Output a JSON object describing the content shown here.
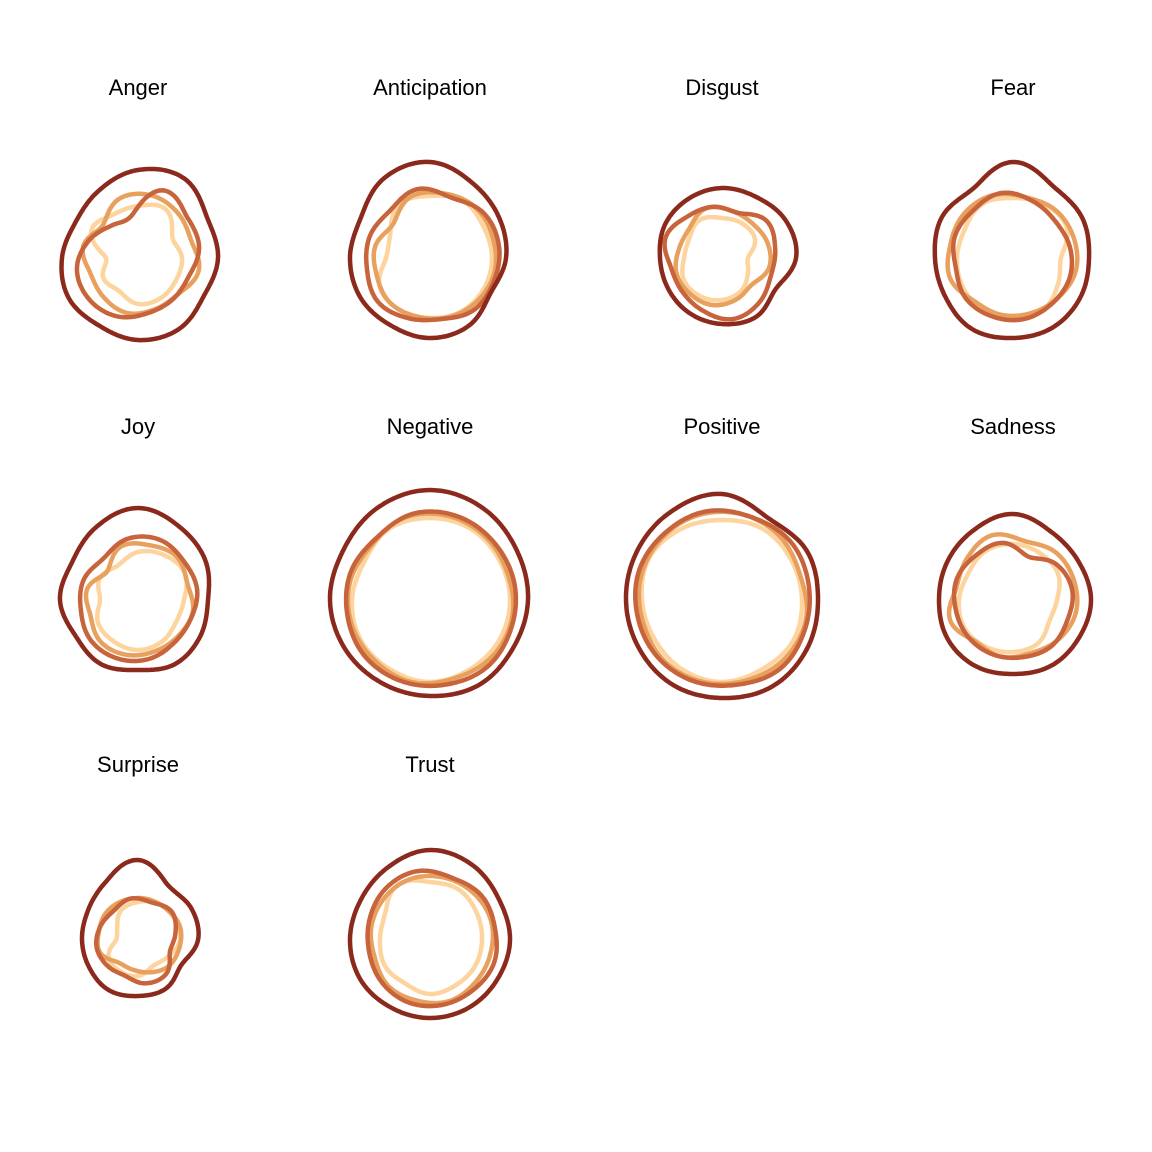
{
  "chart_data": {
    "type": "line",
    "coord": "polar",
    "layout": {
      "columns": 4,
      "rows": 3
    },
    "legend": "none",
    "grid": false,
    "palette": [
      "#fdd49e",
      "#e8a05e",
      "#c8643c",
      "#8b2a1c"
    ],
    "ring_offsets": [
      0,
      12,
      20,
      30
    ],
    "panels": [
      {
        "title": "Anger",
        "rings": [
          [
            52,
            56,
            40,
            44,
            44,
            46,
            46,
            38,
            40,
            32,
            54,
            50
          ],
          [
            64,
            60,
            56,
            62,
            54,
            54,
            56,
            52,
            50,
            56,
            48,
            62
          ],
          [
            72,
            64,
            62,
            54,
            54,
            56,
            62,
            64,
            62,
            52,
            42,
            42
          ],
          [
            92,
            80,
            80,
            76,
            82,
            82,
            78,
            80,
            76,
            72,
            78,
            88
          ]
        ]
      },
      {
        "title": "Anticipation",
        "rings": [
          [
            62,
            66,
            62,
            62,
            62,
            62,
            60,
            60,
            58,
            44,
            46,
            62
          ],
          [
            66,
            68,
            66,
            66,
            64,
            62,
            60,
            60,
            56,
            56,
            50,
            64
          ],
          [
            64,
            70,
            70,
            68,
            68,
            62,
            64,
            68,
            64,
            64,
            62,
            70
          ],
          [
            86,
            80,
            76,
            70,
            78,
            80,
            78,
            80,
            80,
            80,
            92,
            96
          ]
        ]
      },
      {
        "title": "Disgust",
        "rings": [
          [
            40,
            40,
            38,
            26,
            30,
            38,
            42,
            44,
            44,
            38,
            38,
            44
          ],
          [
            48,
            46,
            48,
            48,
            40,
            44,
            48,
            48,
            48,
            44,
            44,
            52
          ],
          [
            48,
            58,
            54,
            52,
            58,
            62,
            56,
            52,
            52,
            60,
            54,
            52
          ],
          [
            70,
            74,
            74,
            62,
            68,
            66,
            64,
            62,
            62,
            66,
            68,
            70
          ]
        ]
      },
      {
        "title": "Fear",
        "rings": [
          [
            60,
            62,
            62,
            48,
            52,
            60,
            60,
            60,
            58,
            56,
            56,
            62
          ],
          [
            62,
            64,
            64,
            64,
            60,
            58,
            58,
            58,
            66,
            64,
            66,
            66
          ],
          [
            60,
            56,
            58,
            60,
            60,
            62,
            62,
            62,
            58,
            62,
            62,
            66
          ],
          [
            82,
            80,
            76,
            78,
            80,
            80,
            82,
            78,
            78,
            82,
            80,
            96
          ]
        ]
      },
      {
        "title": "Joy",
        "rings": [
          [
            48,
            52,
            54,
            46,
            44,
            48,
            50,
            48,
            46,
            38,
            44,
            40
          ],
          [
            56,
            58,
            52,
            56,
            54,
            54,
            56,
            56,
            50,
            52,
            42,
            56
          ],
          [
            64,
            60,
            60,
            56,
            56,
            60,
            62,
            62,
            58,
            58,
            54,
            62
          ],
          [
            84,
            78,
            70,
            72,
            74,
            70,
            74,
            72,
            78,
            76,
            84,
            92
          ]
        ]
      },
      {
        "title": "Negative",
        "rings": [
          [
            82,
            82,
            80,
            80,
            80,
            80,
            82,
            80,
            80,
            78,
            76,
            82
          ],
          [
            86,
            84,
            82,
            84,
            84,
            82,
            84,
            82,
            82,
            82,
            80,
            86
          ],
          [
            88,
            86,
            86,
            86,
            88,
            86,
            86,
            86,
            84,
            84,
            82,
            88
          ],
          [
            106,
            100,
            98,
            96,
            98,
            96,
            96,
            98,
            100,
            100,
            106,
            110
          ]
        ]
      },
      {
        "title": "Positive",
        "rings": [
          [
            80,
            82,
            80,
            80,
            82,
            80,
            82,
            80,
            78,
            80,
            84,
            82
          ],
          [
            88,
            86,
            82,
            86,
            86,
            84,
            84,
            84,
            82,
            84,
            86,
            88
          ],
          [
            88,
            90,
            88,
            88,
            90,
            86,
            86,
            86,
            86,
            88,
            88,
            90
          ],
          [
            94,
            98,
            96,
            98,
            100,
            98,
            98,
            96,
            96,
            98,
            102,
            106
          ]
        ]
      },
      {
        "title": "Sadness",
        "rings": [
          [
            56,
            54,
            52,
            44,
            42,
            50,
            52,
            54,
            56,
            54,
            52,
            56
          ],
          [
            60,
            64,
            64,
            64,
            60,
            56,
            58,
            56,
            66,
            58,
            62,
            68
          ],
          [
            46,
            56,
            60,
            58,
            60,
            58,
            58,
            58,
            58,
            60,
            58,
            58
          ],
          [
            78,
            76,
            78,
            76,
            76,
            74,
            76,
            76,
            74,
            76,
            80,
            86
          ]
        ]
      },
      {
        "title": "Surprise",
        "rings": [
          [
            38,
            42,
            42,
            42,
            34,
            30,
            36,
            36,
            34,
            22,
            24,
            34
          ],
          [
            42,
            42,
            44,
            42,
            40,
            34,
            30,
            30,
            40,
            40,
            42,
            42
          ],
          [
            40,
            44,
            38,
            34,
            44,
            44,
            38,
            40,
            42,
            40,
            38,
            42
          ],
          [
            62,
            62,
            60,
            50,
            56,
            56,
            58,
            56,
            56,
            58,
            66,
            80
          ]
        ]
      },
      {
        "title": "Trust",
        "rings": [
          [
            58,
            58,
            54,
            52,
            52,
            52,
            54,
            50,
            52,
            50,
            52,
            64
          ],
          [
            64,
            64,
            64,
            62,
            62,
            64,
            62,
            62,
            58,
            60,
            62,
            64
          ],
          [
            66,
            68,
            66,
            68,
            66,
            66,
            66,
            64,
            62,
            64,
            68,
            70
          ],
          [
            86,
            80,
            80,
            78,
            78,
            78,
            78,
            80,
            80,
            80,
            84,
            90
          ]
        ]
      }
    ]
  }
}
